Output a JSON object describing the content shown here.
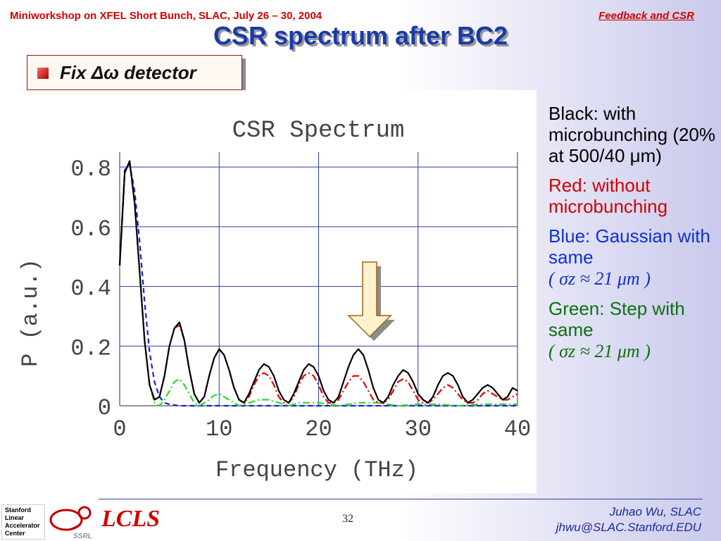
{
  "header": {
    "left": "Miniworkshop on XFEL Short Bunch, SLAC, July 26 – 30, 2004",
    "right": "Feedback and CSR"
  },
  "slide_title": "CSR spectrum after BC2",
  "subtitle": "Fix Δω detector",
  "legend": {
    "black": "Black: with microbunching (20% at 500/40 μm)",
    "red": "Red: without microbunching",
    "blue_label": "Blue: Gaussian with same",
    "green_label": "Green: Step with same",
    "formula": "( σz ≈ 21 μm )"
  },
  "footer": {
    "logo_lines": [
      "Stanford",
      "Linear",
      "Accelerator",
      "Center"
    ],
    "ssrl": "SSRL",
    "lcls": "LCLS",
    "page_number": "32",
    "author": "Juhao Wu, SLAC",
    "email": "jhwu@SLAC.Stanford.EDU"
  },
  "colors": {
    "title": "#1a3aa8",
    "header": "#d40000",
    "black": "#000000",
    "red": "#e00000",
    "blue": "#1020e0",
    "green": "#20e020",
    "grid": "#2a3aa8",
    "arrow_fill": "#fff2cc"
  },
  "chart_data": {
    "type": "line",
    "title": "CSR Spectrum",
    "xlabel": "Frequency (THz)",
    "ylabel": "P (a.u.)",
    "xlim": [
      0,
      40
    ],
    "ylim": [
      0,
      0.85
    ],
    "xticks": [
      "0",
      "10",
      "20",
      "30",
      "40"
    ],
    "yticks": [
      "0",
      "0.2",
      "0.4",
      "0.6",
      "0.8"
    ],
    "grid": true,
    "annotation": "down-arrow above peak near 25 THz",
    "series": [
      {
        "key": "black",
        "style": "solid",
        "x": [
          0,
          0.5,
          1,
          1.5,
          2,
          2.5,
          3,
          3.5,
          4,
          4.5,
          5,
          5.5,
          6,
          6.5,
          7,
          7.5,
          8,
          8.5,
          9,
          9.5,
          10,
          10.5,
          11,
          11.5,
          12,
          12.5,
          13,
          13.5,
          14,
          14.5,
          15,
          15.5,
          16,
          16.5,
          17,
          17.5,
          18,
          18.5,
          19,
          19.5,
          20,
          20.5,
          21,
          21.5,
          22,
          22.5,
          23,
          23.5,
          24,
          24.5,
          25,
          25.5,
          26,
          26.5,
          27,
          27.5,
          28,
          28.5,
          29,
          29.5,
          30,
          30.5,
          31,
          31.5,
          32,
          32.5,
          33,
          33.5,
          34,
          34.5,
          35,
          35.5,
          36,
          36.5,
          37,
          37.5,
          38,
          38.5,
          39,
          39.5,
          40
        ],
        "y": [
          0.47,
          0.78,
          0.82,
          0.68,
          0.45,
          0.22,
          0.07,
          0.02,
          0.03,
          0.1,
          0.2,
          0.26,
          0.28,
          0.22,
          0.12,
          0.04,
          0.01,
          0.03,
          0.1,
          0.16,
          0.19,
          0.17,
          0.12,
          0.06,
          0.02,
          0.01,
          0.04,
          0.08,
          0.12,
          0.14,
          0.13,
          0.1,
          0.05,
          0.02,
          0.01,
          0.04,
          0.08,
          0.12,
          0.14,
          0.13,
          0.1,
          0.05,
          0.02,
          0.01,
          0.03,
          0.08,
          0.13,
          0.17,
          0.19,
          0.17,
          0.12,
          0.06,
          0.02,
          0.01,
          0.03,
          0.07,
          0.1,
          0.12,
          0.11,
          0.08,
          0.04,
          0.02,
          0.01,
          0.03,
          0.07,
          0.1,
          0.11,
          0.1,
          0.07,
          0.03,
          0.01,
          0.02,
          0.04,
          0.06,
          0.07,
          0.06,
          0.04,
          0.02,
          0.03,
          0.06,
          0.05
        ]
      },
      {
        "key": "red",
        "style": "dashdot",
        "x": [
          0,
          0.5,
          1,
          1.5,
          2,
          2.5,
          3,
          3.5,
          4,
          4.5,
          5,
          5.5,
          6,
          6.5,
          7,
          7.5,
          8,
          8.5,
          9,
          9.5,
          10,
          10.5,
          11,
          11.5,
          12,
          12.5,
          13,
          13.5,
          14,
          14.5,
          15,
          15.5,
          16,
          16.5,
          17,
          17.5,
          18,
          18.5,
          19,
          19.5,
          20,
          20.5,
          21,
          21.5,
          22,
          22.5,
          23,
          23.5,
          24,
          24.5,
          25,
          25.5,
          26,
          26.5,
          27,
          27.5,
          28,
          28.5,
          29,
          29.5,
          30,
          30.5,
          31,
          31.5,
          32,
          32.5,
          33,
          33.5,
          34,
          34.5,
          35,
          35.5,
          36,
          36.5,
          37,
          37.5,
          38,
          38.5,
          39,
          39.5,
          40
        ],
        "y": [
          0.47,
          0.78,
          0.82,
          0.68,
          0.45,
          0.22,
          0.07,
          0.02,
          0.03,
          0.1,
          0.2,
          0.26,
          0.27,
          0.22,
          0.12,
          0.04,
          0.01,
          0.03,
          0.1,
          0.16,
          0.19,
          0.17,
          0.12,
          0.06,
          0.02,
          0.01,
          0.03,
          0.07,
          0.1,
          0.11,
          0.1,
          0.07,
          0.03,
          0.01,
          0.01,
          0.03,
          0.07,
          0.1,
          0.11,
          0.1,
          0.07,
          0.03,
          0.01,
          0.01,
          0.02,
          0.05,
          0.08,
          0.1,
          0.1,
          0.08,
          0.05,
          0.02,
          0.01,
          0.01,
          0.02,
          0.05,
          0.08,
          0.09,
          0.08,
          0.05,
          0.02,
          0.01,
          0.01,
          0.02,
          0.04,
          0.06,
          0.07,
          0.06,
          0.04,
          0.02,
          0.01,
          0.01,
          0.02,
          0.04,
          0.05,
          0.04,
          0.03,
          0.02,
          0.02,
          0.03,
          0.04
        ]
      },
      {
        "key": "blue",
        "style": "dashed",
        "x": [
          0,
          0.5,
          1,
          1.5,
          2,
          2.5,
          3,
          3.5,
          4,
          4.5,
          5,
          6,
          8,
          10,
          15,
          20,
          25,
          30,
          35,
          40
        ],
        "y": [
          0.47,
          0.79,
          0.81,
          0.72,
          0.55,
          0.35,
          0.18,
          0.08,
          0.03,
          0.01,
          0.005,
          0.0,
          0.0,
          0.0,
          0.0,
          0.0,
          0.0,
          0.0,
          0.0,
          0.0
        ]
      },
      {
        "key": "green",
        "style": "dashdot",
        "x": [
          0,
          0.5,
          1,
          1.5,
          2,
          2.5,
          3,
          3.5,
          4,
          4.5,
          5,
          5.5,
          6,
          6.5,
          7,
          7.5,
          8,
          8.5,
          9,
          9.5,
          10,
          10.5,
          11,
          11.5,
          12,
          13,
          14,
          15,
          16,
          17,
          18,
          19,
          20,
          22,
          24,
          26,
          28,
          30,
          32,
          34,
          36,
          38,
          40
        ],
        "y": [
          0.47,
          0.78,
          0.82,
          0.68,
          0.45,
          0.22,
          0.07,
          0.01,
          0.0,
          0.02,
          0.05,
          0.08,
          0.09,
          0.07,
          0.04,
          0.01,
          0.0,
          0.01,
          0.02,
          0.035,
          0.04,
          0.03,
          0.02,
          0.01,
          0.0,
          0.01,
          0.02,
          0.02,
          0.01,
          0.0,
          0.01,
          0.01,
          0.01,
          0.0,
          0.01,
          0.01,
          0.0,
          0.005,
          0.005,
          0.0,
          0.005,
          0.005,
          0.005
        ]
      }
    ]
  }
}
